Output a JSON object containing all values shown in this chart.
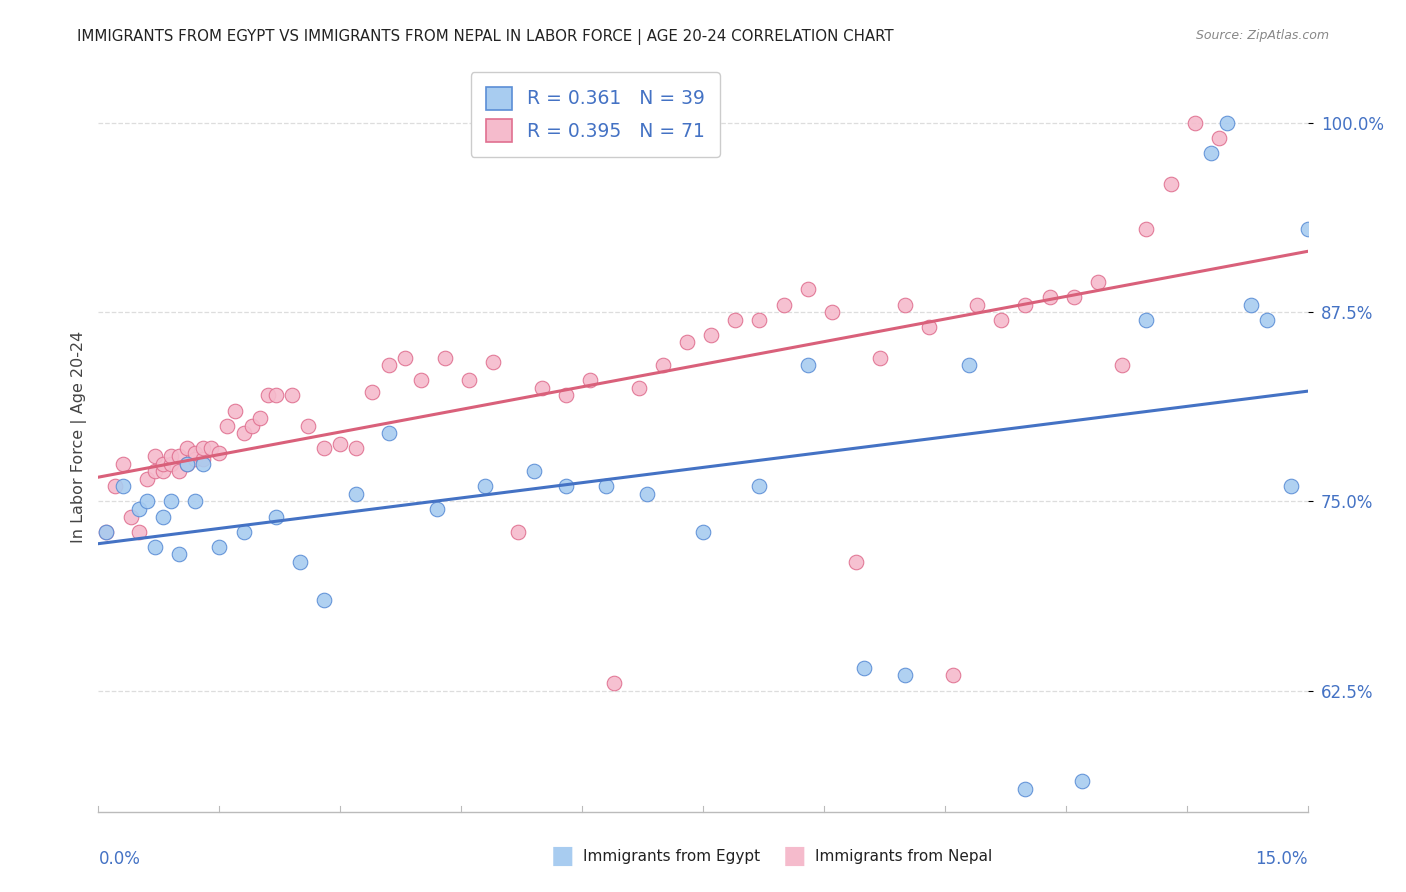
{
  "title": "IMMIGRANTS FROM EGYPT VS IMMIGRANTS FROM NEPAL IN LABOR FORCE | AGE 20-24 CORRELATION CHART",
  "source": "Source: ZipAtlas.com",
  "ylabel": "In Labor Force | Age 20-24",
  "ytick_vals": [
    0.625,
    0.75,
    0.875,
    1.0
  ],
  "ytick_labels": [
    "62.5%",
    "75.0%",
    "87.5%",
    "100.0%"
  ],
  "r_egypt": 0.361,
  "n_egypt": 39,
  "r_nepal": 0.395,
  "n_nepal": 71,
  "egypt_color": "#A8CCF0",
  "nepal_color": "#F5BBCC",
  "egypt_edge_color": "#5B8ED6",
  "nepal_edge_color": "#E07090",
  "egypt_line_color": "#4472C4",
  "nepal_line_color": "#D9607A",
  "grid_color": "#DDDDDD",
  "title_color": "#222222",
  "axis_label_color": "#4472C4",
  "xlim": [
    0.0,
    0.15
  ],
  "ylim": [
    0.545,
    1.04
  ],
  "egypt_x": [
    0.001,
    0.003,
    0.005,
    0.006,
    0.007,
    0.008,
    0.009,
    0.01,
    0.011,
    0.012,
    0.013,
    0.015,
    0.018,
    0.022,
    0.025,
    0.028,
    0.032,
    0.036,
    0.042,
    0.048,
    0.054,
    0.058,
    0.063,
    0.068,
    0.075,
    0.082,
    0.088,
    0.095,
    0.1,
    0.108,
    0.115,
    0.122,
    0.13,
    0.138,
    0.14,
    0.143,
    0.145,
    0.148,
    0.15
  ],
  "egypt_y": [
    0.73,
    0.76,
    0.745,
    0.75,
    0.72,
    0.74,
    0.75,
    0.715,
    0.775,
    0.75,
    0.775,
    0.72,
    0.73,
    0.74,
    0.71,
    0.685,
    0.755,
    0.795,
    0.745,
    0.76,
    0.77,
    0.76,
    0.76,
    0.755,
    0.73,
    0.76,
    0.84,
    0.64,
    0.635,
    0.84,
    0.56,
    0.565,
    0.87,
    0.98,
    1.0,
    0.88,
    0.87,
    0.76,
    0.93
  ],
  "nepal_x": [
    0.001,
    0.002,
    0.003,
    0.004,
    0.005,
    0.006,
    0.007,
    0.007,
    0.008,
    0.008,
    0.009,
    0.009,
    0.01,
    0.01,
    0.011,
    0.011,
    0.012,
    0.012,
    0.013,
    0.013,
    0.014,
    0.015,
    0.016,
    0.017,
    0.018,
    0.019,
    0.02,
    0.021,
    0.022,
    0.024,
    0.026,
    0.028,
    0.03,
    0.032,
    0.034,
    0.036,
    0.038,
    0.04,
    0.043,
    0.046,
    0.049,
    0.052,
    0.055,
    0.058,
    0.061,
    0.064,
    0.067,
    0.07,
    0.073,
    0.076,
    0.079,
    0.082,
    0.085,
    0.088,
    0.091,
    0.094,
    0.097,
    0.1,
    0.103,
    0.106,
    0.109,
    0.112,
    0.115,
    0.118,
    0.121,
    0.124,
    0.127,
    0.13,
    0.133,
    0.136,
    0.139
  ],
  "nepal_y": [
    0.73,
    0.76,
    0.775,
    0.74,
    0.73,
    0.765,
    0.77,
    0.78,
    0.77,
    0.775,
    0.775,
    0.78,
    0.77,
    0.78,
    0.785,
    0.775,
    0.778,
    0.782,
    0.778,
    0.785,
    0.785,
    0.782,
    0.8,
    0.81,
    0.795,
    0.8,
    0.805,
    0.82,
    0.82,
    0.82,
    0.8,
    0.785,
    0.788,
    0.785,
    0.822,
    0.84,
    0.845,
    0.83,
    0.845,
    0.83,
    0.842,
    0.73,
    0.825,
    0.82,
    0.83,
    0.63,
    0.825,
    0.84,
    0.855,
    0.86,
    0.87,
    0.87,
    0.88,
    0.89,
    0.875,
    0.71,
    0.845,
    0.88,
    0.865,
    0.635,
    0.88,
    0.87,
    0.88,
    0.885,
    0.885,
    0.895,
    0.84,
    0.93,
    0.96,
    1.0,
    0.99
  ]
}
